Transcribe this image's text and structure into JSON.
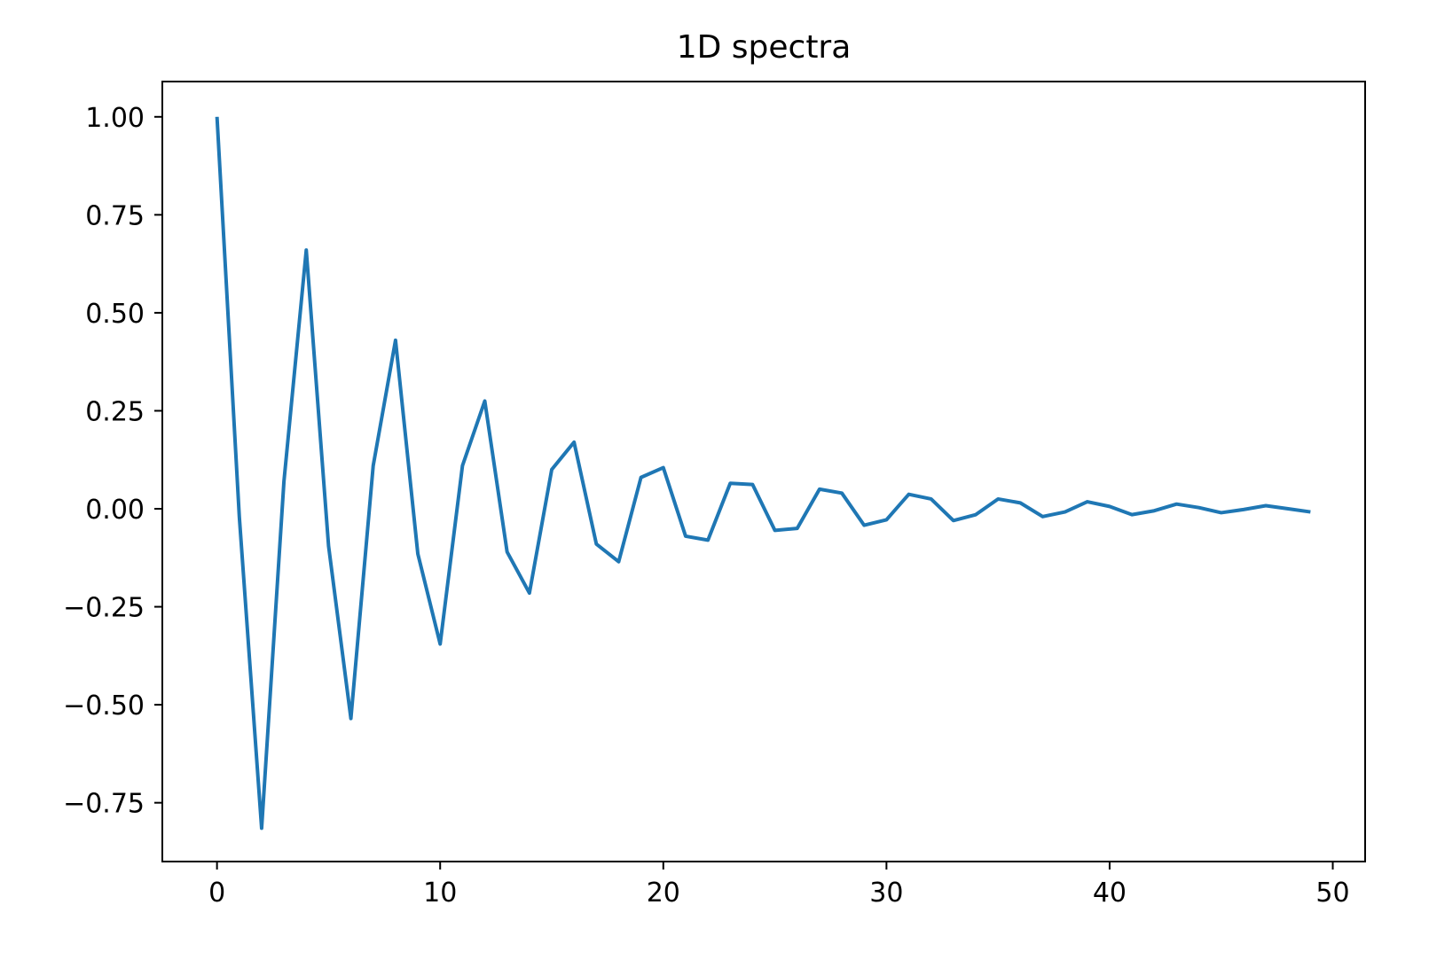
{
  "chart_data": {
    "type": "line",
    "title": "1D spectra",
    "xlabel": "",
    "ylabel": "",
    "xlim": [
      -2.45,
      51.45
    ],
    "ylim": [
      -0.9,
      1.09
    ],
    "xticks": [
      0,
      10,
      20,
      30,
      40,
      50
    ],
    "xtick_labels": [
      "0",
      "10",
      "20",
      "30",
      "40",
      "50"
    ],
    "yticks": [
      1.0,
      0.75,
      0.5,
      0.25,
      0.0,
      -0.25,
      -0.5,
      -0.75
    ],
    "ytick_labels": [
      "1.00",
      "0.75",
      "0.50",
      "0.25",
      "0.00",
      "−0.25",
      "−0.50",
      "−0.75"
    ],
    "grid": false,
    "series": [
      {
        "color": "#1f77b4",
        "x": [
          0,
          1,
          2,
          3,
          4,
          5,
          6,
          7,
          8,
          9,
          10,
          11,
          12,
          13,
          14,
          15,
          16,
          17,
          18,
          19,
          20,
          21,
          22,
          23,
          24,
          25,
          26,
          27,
          28,
          29,
          30,
          31,
          32,
          33,
          34,
          35,
          36,
          37,
          38,
          39,
          40,
          41,
          42,
          43,
          44,
          45,
          46,
          47,
          48,
          49
        ],
        "values": [
          1.0,
          -0.02,
          -0.815,
          0.07,
          0.66,
          -0.095,
          -0.535,
          0.11,
          0.43,
          -0.115,
          -0.345,
          0.11,
          0.275,
          -0.11,
          -0.215,
          0.1,
          0.17,
          -0.09,
          -0.135,
          0.08,
          0.105,
          -0.07,
          -0.08,
          0.065,
          0.062,
          -0.055,
          -0.05,
          0.05,
          0.04,
          -0.042,
          -0.028,
          0.037,
          0.025,
          -0.03,
          -0.015,
          0.025,
          0.015,
          -0.02,
          -0.008,
          0.018,
          0.006,
          -0.015,
          -0.005,
          0.012,
          0.003,
          -0.01,
          -0.002,
          0.008,
          0.0,
          -0.008
        ]
      }
    ]
  }
}
